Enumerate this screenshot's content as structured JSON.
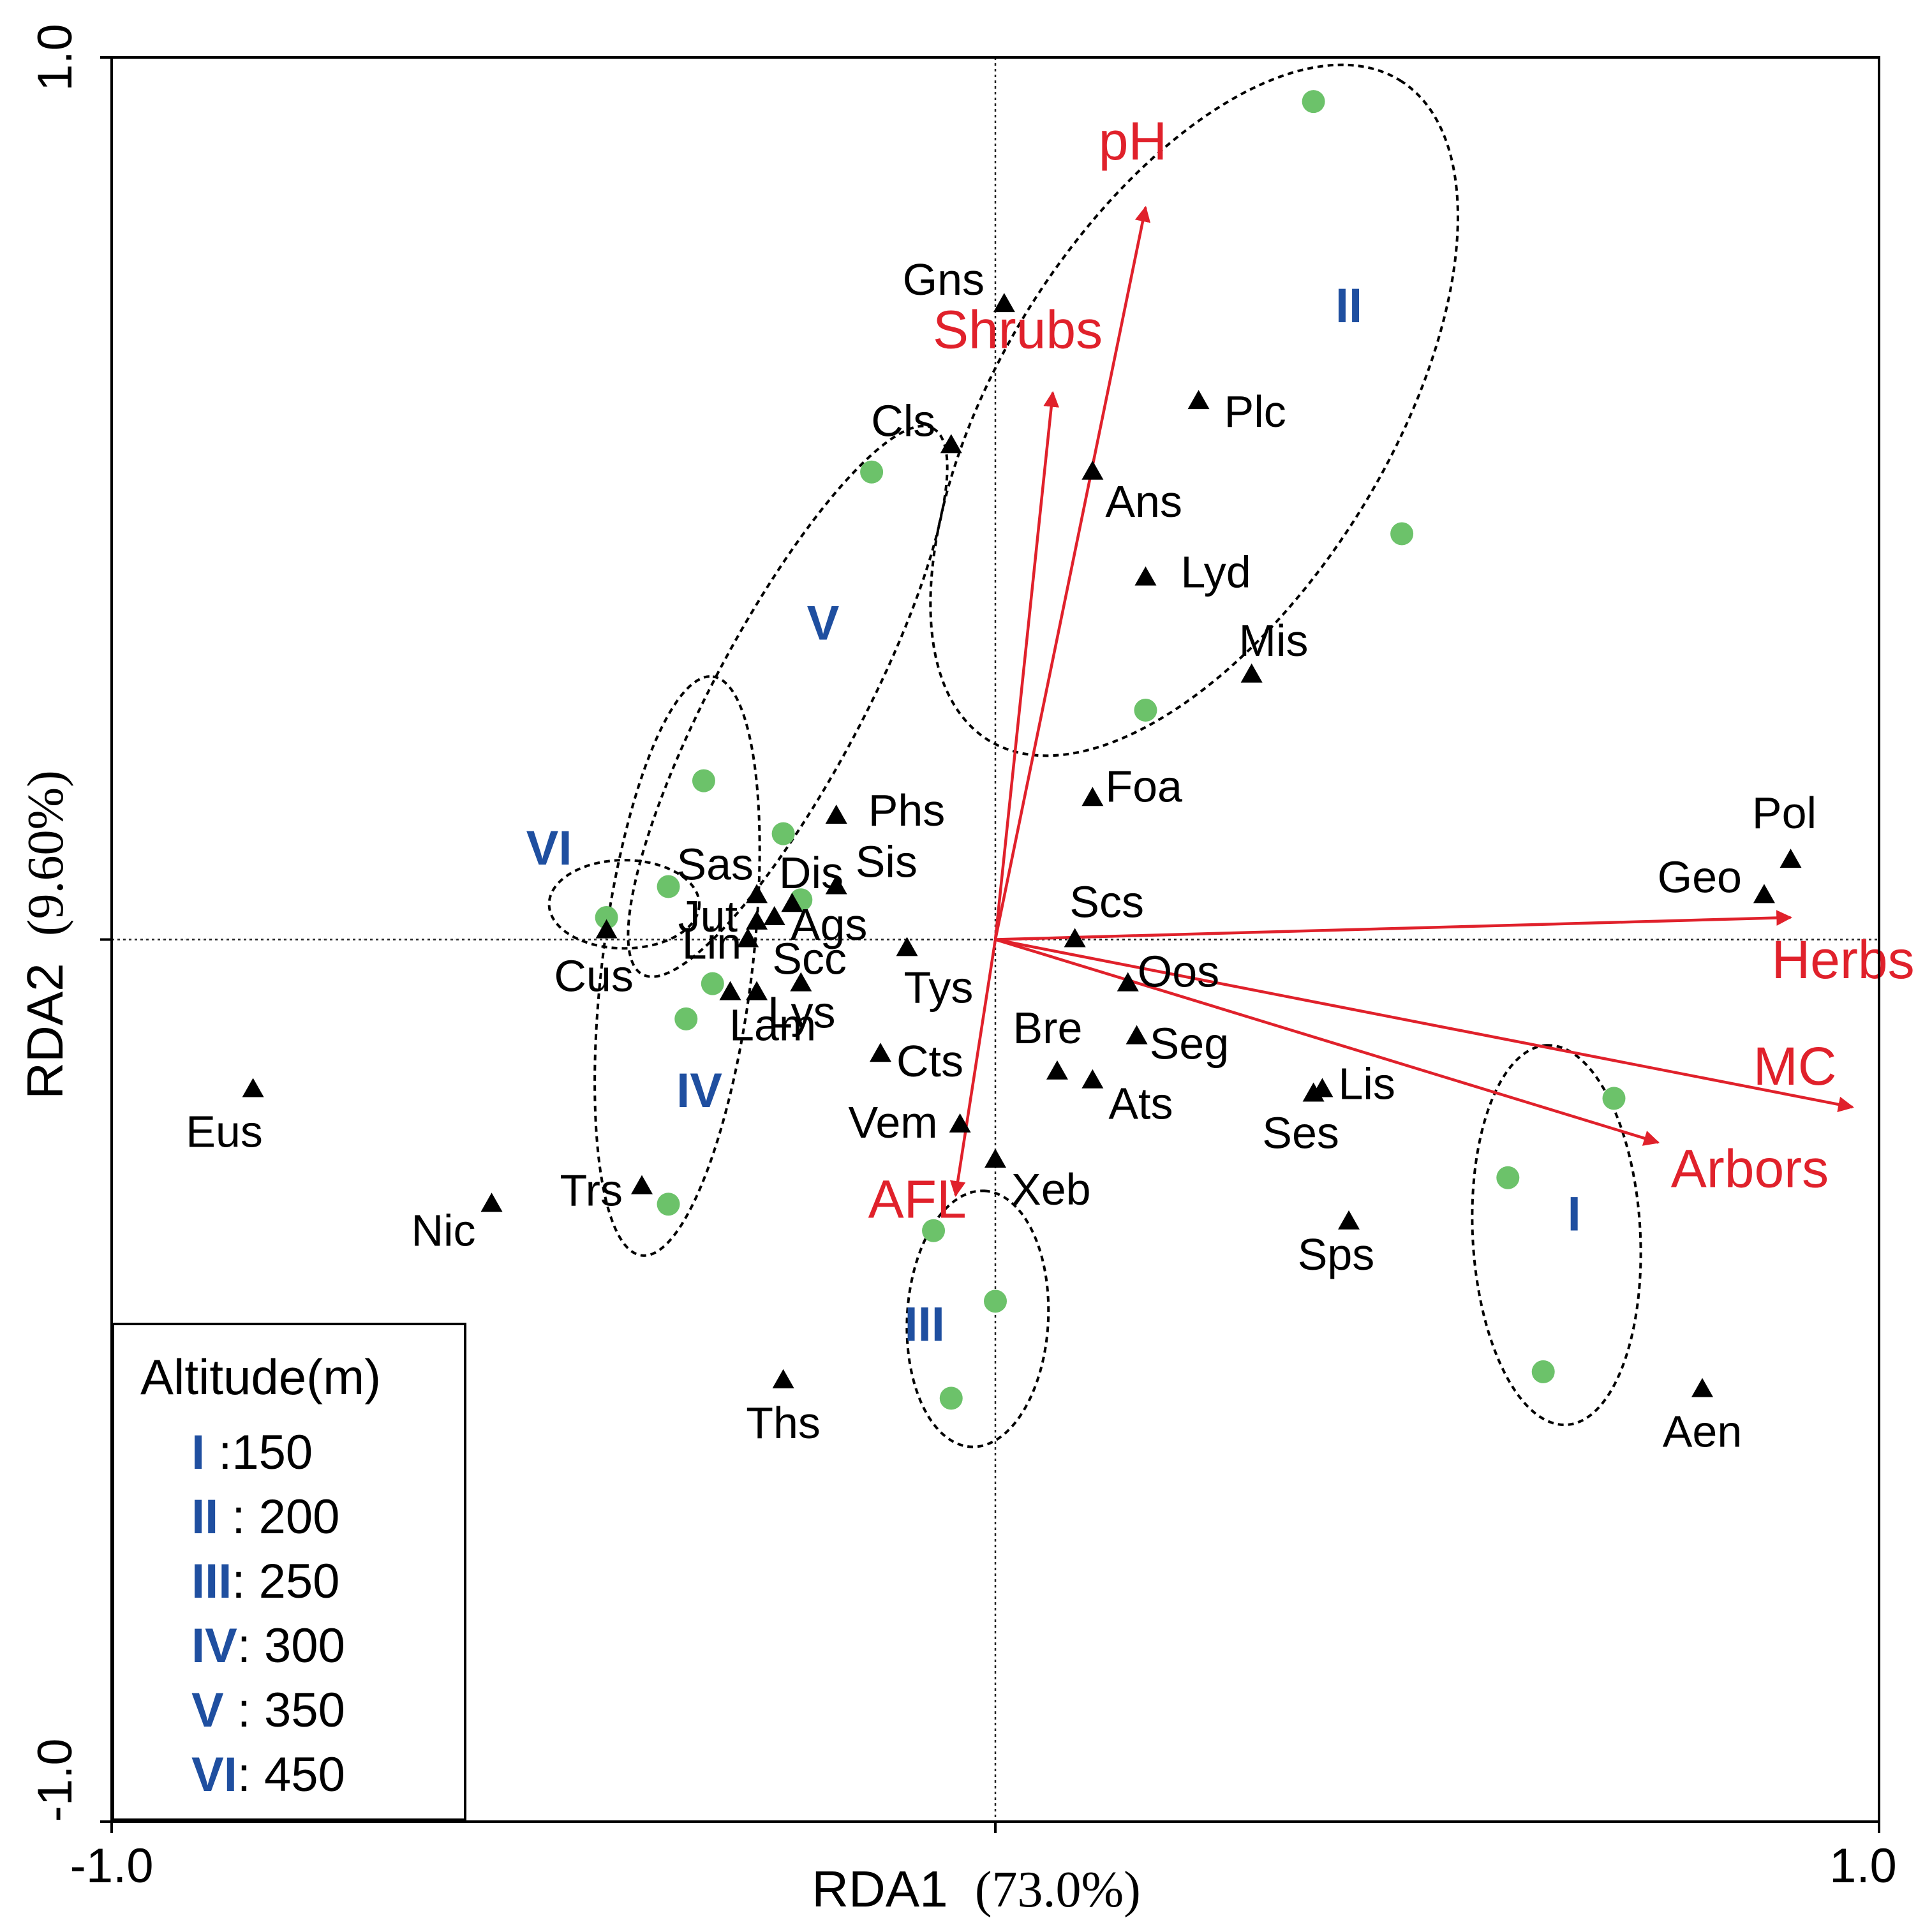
{
  "chart_data": {
    "type": "scatter",
    "title": "",
    "xlabel": "RDA1",
    "xlabel_pct": "(73.0%)",
    "ylabel": "RDA2",
    "ylabel_pct": "(9.60%)",
    "xlim": [
      -1.0,
      1.0
    ],
    "ylim": [
      -1.0,
      1.0
    ],
    "x_ticks": [
      "-1.0",
      "1.0"
    ],
    "y_ticks": [
      "-1.0",
      "1.0"
    ],
    "grid": false,
    "zero_lines": true,
    "colors": {
      "axes": "#000000",
      "arrow": "#e0212b",
      "site": "#6cc26a",
      "group_label": "#1f4fa0",
      "species": "#000000"
    },
    "species": [
      {
        "name": "Gns",
        "x": 0.01,
        "y": 0.72
      },
      {
        "name": "Cls",
        "x": -0.05,
        "y": 0.56
      },
      {
        "name": "Plc",
        "x": 0.23,
        "y": 0.61
      },
      {
        "name": "Ans",
        "x": 0.11,
        "y": 0.53
      },
      {
        "name": "Lyd",
        "x": 0.17,
        "y": 0.41
      },
      {
        "name": "Mis",
        "x": 0.29,
        "y": 0.3
      },
      {
        "name": "Foa",
        "x": 0.11,
        "y": 0.16
      },
      {
        "name": "Phs",
        "x": -0.18,
        "y": 0.14
      },
      {
        "name": "Sis",
        "x": -0.18,
        "y": 0.06
      },
      {
        "name": "Sas",
        "x": -0.27,
        "y": 0.05
      },
      {
        "name": "Dis",
        "x": -0.23,
        "y": 0.04
      },
      {
        "name": "Jut",
        "x": -0.27,
        "y": 0.02
      },
      {
        "name": "Ags",
        "x": -0.25,
        "y": 0.025
      },
      {
        "name": "Scs",
        "x": 0.09,
        "y": 0.0
      },
      {
        "name": "Tys",
        "x": -0.1,
        "y": -0.01
      },
      {
        "name": "Lin",
        "x": -0.28,
        "y": 0.0
      },
      {
        "name": "Scc",
        "x": -0.22,
        "y": -0.05
      },
      {
        "name": "Cus",
        "x": -0.44,
        "y": 0.01
      },
      {
        "name": "Lam",
        "x": -0.27,
        "y": -0.06
      },
      {
        "name": "Lys",
        "x": -0.3,
        "y": -0.06
      },
      {
        "name": "Oos",
        "x": 0.15,
        "y": -0.05
      },
      {
        "name": "Cts",
        "x": -0.13,
        "y": -0.13
      },
      {
        "name": "Bre",
        "x": 0.07,
        "y": -0.15
      },
      {
        "name": "Seg",
        "x": 0.16,
        "y": -0.11
      },
      {
        "name": "Ats",
        "x": 0.11,
        "y": -0.16
      },
      {
        "name": "Lis",
        "x": 0.37,
        "y": -0.17
      },
      {
        "name": "Ses",
        "x": 0.36,
        "y": -0.175
      },
      {
        "name": "Pol",
        "x": 0.9,
        "y": 0.09
      },
      {
        "name": "Geo",
        "x": 0.87,
        "y": 0.05
      },
      {
        "name": "Eus",
        "x": -0.84,
        "y": -0.17
      },
      {
        "name": "Vem",
        "x": -0.04,
        "y": -0.21
      },
      {
        "name": "Xeb",
        "x": 0.0,
        "y": -0.25
      },
      {
        "name": "Trs",
        "x": -0.4,
        "y": -0.28
      },
      {
        "name": "Nic",
        "x": -0.57,
        "y": -0.3
      },
      {
        "name": "Sps",
        "x": 0.4,
        "y": -0.32
      },
      {
        "name": "Ths",
        "x": -0.24,
        "y": -0.5
      },
      {
        "name": "Aen",
        "x": 0.8,
        "y": -0.51
      }
    ],
    "sites": [
      {
        "x": 0.36,
        "y": 0.95
      },
      {
        "x": 0.46,
        "y": 0.46
      },
      {
        "x": 0.17,
        "y": 0.26
      },
      {
        "x": -0.14,
        "y": 0.53
      },
      {
        "x": -0.33,
        "y": 0.18
      },
      {
        "x": -0.24,
        "y": 0.12
      },
      {
        "x": -0.37,
        "y": 0.06
      },
      {
        "x": -0.44,
        "y": 0.025
      },
      {
        "x": -0.22,
        "y": 0.045
      },
      {
        "x": -0.32,
        "y": -0.05
      },
      {
        "x": -0.35,
        "y": -0.09
      },
      {
        "x": -0.37,
        "y": -0.3
      },
      {
        "x": 0.58,
        "y": -0.27
      },
      {
        "x": 0.7,
        "y": -0.18
      },
      {
        "x": 0.62,
        "y": -0.49
      },
      {
        "x": -0.07,
        "y": -0.33
      },
      {
        "x": 0.0,
        "y": -0.41
      },
      {
        "x": -0.05,
        "y": -0.52
      }
    ],
    "arrows": [
      {
        "name": "pH",
        "x": 0.17,
        "y": 0.83
      },
      {
        "name": "Shrubs",
        "x": 0.065,
        "y": 0.62
      },
      {
        "name": "Herbs",
        "x": 0.9,
        "y": 0.025
      },
      {
        "name": "MC",
        "x": 0.97,
        "y": -0.19
      },
      {
        "name": "Arbors",
        "x": 0.75,
        "y": -0.23
      },
      {
        "name": "AFL",
        "x": -0.045,
        "y": -0.29
      }
    ],
    "groups": [
      {
        "label": "II",
        "cx": 0.225,
        "cy": 0.6,
        "rx": 0.44,
        "ry": 0.22,
        "angle": 58,
        "label_x": 0.4,
        "label_y": 0.7
      },
      {
        "label": "V",
        "cx": -0.235,
        "cy": 0.27,
        "rx": 0.35,
        "ry": 0.085,
        "angle": 62,
        "label_x": -0.195,
        "label_y": 0.34
      },
      {
        "label": "IV",
        "cx": -0.36,
        "cy": -0.03,
        "rx": 0.33,
        "ry": 0.085,
        "angle": 83,
        "label_x": -0.335,
        "label_y": -0.19
      },
      {
        "label": "VI",
        "cx": -0.42,
        "cy": 0.04,
        "rx": 0.085,
        "ry": 0.05,
        "angle": 0,
        "label_x": -0.505,
        "label_y": 0.085
      },
      {
        "label": "I",
        "cx": 0.635,
        "cy": -0.335,
        "rx": 0.215,
        "ry": 0.095,
        "angle": 93,
        "label_x": 0.655,
        "label_y": -0.33
      },
      {
        "label": "III",
        "cx": -0.02,
        "cy": -0.43,
        "rx": 0.145,
        "ry": 0.08,
        "angle": 87,
        "label_x": -0.08,
        "label_y": -0.455
      }
    ],
    "legend": {
      "title": "Altitude(m)",
      "placement": "bottom-left",
      "entries": [
        {
          "code": "I",
          "value": " :150"
        },
        {
          "code": "II",
          "value": " : 200"
        },
        {
          "code": "III",
          "value": ": 250"
        },
        {
          "code": "IV",
          "value": ": 300"
        },
        {
          "code": "V",
          "value": " : 350"
        },
        {
          "code": "VI",
          "value": ": 450"
        }
      ]
    }
  }
}
